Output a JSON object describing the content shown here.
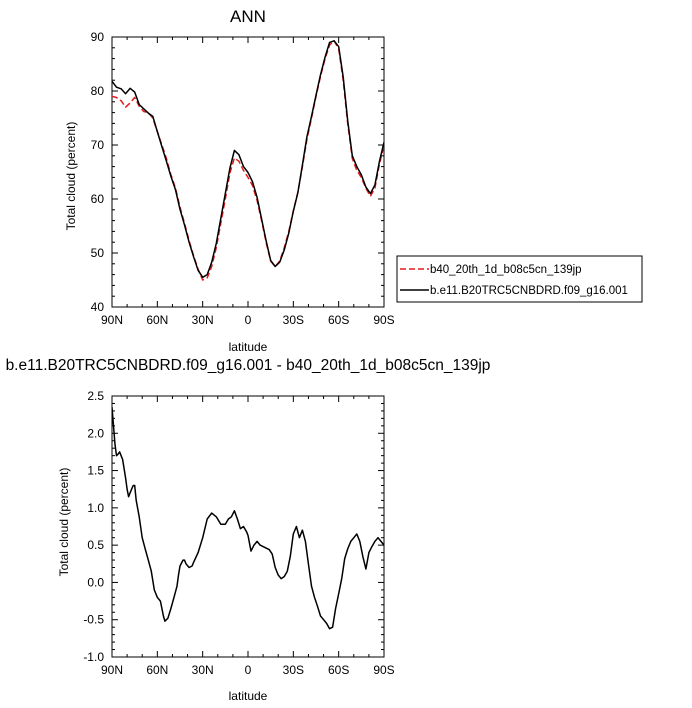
{
  "chart_data": [
    {
      "type": "line",
      "title": "ANN",
      "xlabel": "latitude",
      "ylabel": "Total cloud (percent)",
      "xlim": [
        90,
        -90
      ],
      "ylim": [
        40,
        90
      ],
      "xticks": [
        90,
        60,
        30,
        0,
        -30,
        -60,
        -90
      ],
      "xtick_labels": [
        "90N",
        "60N",
        "30N",
        "0",
        "30S",
        "60S",
        "90S"
      ],
      "yticks": [
        40,
        50,
        60,
        70,
        80,
        90
      ],
      "ytick_labels": [
        "40",
        "50",
        "60",
        "70",
        "80",
        "90"
      ],
      "grid": false,
      "legend_position": "right",
      "series": [
        {
          "name": "b40_20th_1d_b08c5cn_139jp",
          "color": "#e41a1c",
          "dash": "dashed",
          "x": [
            90,
            87,
            84,
            81,
            78,
            75,
            72,
            69,
            66,
            63,
            60,
            57,
            54,
            51,
            48,
            45,
            42,
            39,
            36,
            33,
            30,
            27,
            24,
            21,
            18,
            15,
            12,
            9,
            6,
            3,
            0,
            -3,
            -6,
            -9,
            -12,
            -15,
            -18,
            -21,
            -24,
            -27,
            -30,
            -33,
            -36,
            -39,
            -42,
            -45,
            -48,
            -51,
            -54,
            -57,
            -60,
            -63,
            -66,
            -69,
            -72,
            -75,
            -78,
            -81,
            -84,
            -87,
            -90
          ],
          "y": [
            79,
            78.8,
            78.2,
            77,
            77.8,
            78.8,
            77.2,
            76.2,
            76,
            75,
            72.5,
            70,
            67.5,
            64.5,
            62,
            58.5,
            55.5,
            52.3,
            49.5,
            47,
            45,
            45.4,
            47.5,
            51,
            55.5,
            60,
            64.8,
            67.6,
            67,
            65.3,
            64,
            62.5,
            59.7,
            56,
            52,
            48.5,
            47.5,
            48.5,
            51,
            54,
            57.8,
            61.3,
            66,
            71,
            75,
            79,
            82.7,
            86,
            88.5,
            89.3,
            87.8,
            82,
            74,
            67.5,
            65.3,
            64,
            62,
            60.5,
            62,
            66.5,
            70
          ]
        },
        {
          "name": "b.e11.B20TRC5CNBDRD.f09_g16.001",
          "color": "#000000",
          "dash": "solid",
          "x": [
            90,
            87,
            84,
            81,
            78,
            75,
            72,
            69,
            66,
            63,
            60,
            57,
            54,
            51,
            48,
            45,
            42,
            39,
            36,
            33,
            30,
            27,
            24,
            21,
            18,
            15,
            12,
            9,
            6,
            3,
            0,
            -3,
            -6,
            -9,
            -12,
            -15,
            -18,
            -21,
            -24,
            -27,
            -30,
            -33,
            -36,
            -39,
            -42,
            -45,
            -48,
            -51,
            -54,
            -57,
            -60,
            -63,
            -66,
            -69,
            -72,
            -75,
            -78,
            -81,
            -84,
            -87,
            -90
          ],
          "y": [
            81.8,
            80.7,
            80.4,
            79.5,
            80.5,
            79.8,
            77.5,
            76.7,
            75.9,
            75.3,
            72.5,
            69.7,
            67,
            64.2,
            61.7,
            58.1,
            55.2,
            52,
            49.3,
            46.8,
            45.5,
            46,
            48.3,
            51.8,
            56.4,
            61,
            65.7,
            69,
            68.2,
            66,
            64.9,
            63.2,
            60.3,
            56.3,
            52.3,
            48.6,
            47.5,
            48.3,
            50.6,
            53.7,
            57.7,
            61.2,
            66.3,
            71.5,
            75.3,
            79.2,
            83,
            86.3,
            89,
            89.3,
            88.2,
            82.6,
            74.5,
            68,
            66,
            64.5,
            62.2,
            61,
            62.6,
            67,
            70.5
          ]
        }
      ]
    },
    {
      "type": "line",
      "title": "b.e11.B20TRC5CNBDRD.f09_g16.001 - b40_20th_1d_b08c5cn_139jp",
      "xlabel": "latitude",
      "ylabel": "Total cloud (percent)",
      "xlim": [
        90,
        -90
      ],
      "ylim": [
        -1.0,
        2.5
      ],
      "xticks": [
        90,
        60,
        30,
        0,
        -30,
        -60,
        -90
      ],
      "xtick_labels": [
        "90N",
        "60N",
        "30N",
        "0",
        "30S",
        "60S",
        "90S"
      ],
      "yticks": [
        -1.0,
        -0.5,
        0.0,
        0.5,
        1.0,
        1.5,
        2.0,
        2.5
      ],
      "ytick_labels": [
        "-1.0",
        "-0.5",
        "0.0",
        "0.5",
        "1.0",
        "1.5",
        "2.0",
        "2.5"
      ],
      "grid": false,
      "series": [
        {
          "color": "#000000",
          "dash": "solid",
          "x": [
            90,
            89,
            88,
            87,
            86,
            85,
            84,
            83,
            81,
            80,
            79,
            78,
            77,
            76,
            75,
            74,
            72,
            70,
            68,
            66,
            64,
            62,
            60,
            58,
            57,
            56,
            55,
            53,
            51,
            49,
            47,
            46,
            45,
            43,
            42,
            41,
            39,
            37,
            36,
            33,
            30,
            27,
            24,
            21,
            18,
            15,
            13,
            11,
            9,
            7,
            5,
            3,
            1,
            0,
            -2,
            -4,
            -6,
            -8,
            -10,
            -12,
            -14,
            -16,
            -18,
            -20,
            -22,
            -24,
            -26,
            -28,
            -30,
            -32,
            -34,
            -36,
            -38,
            -40,
            -42,
            -44,
            -46,
            -48,
            -50,
            -52,
            -54,
            -56,
            -58,
            -60,
            -62,
            -64,
            -66,
            -68,
            -70,
            -72,
            -74,
            -76,
            -78,
            -80,
            -82,
            -84,
            -86,
            -88,
            -90
          ],
          "y": [
            2.35,
            2.1,
            1.85,
            1.7,
            1.72,
            1.75,
            1.7,
            1.65,
            1.4,
            1.25,
            1.15,
            1.2,
            1.25,
            1.3,
            1.3,
            1.1,
            0.88,
            0.6,
            0.45,
            0.3,
            0.15,
            -0.1,
            -0.2,
            -0.25,
            -0.35,
            -0.45,
            -0.52,
            -0.48,
            -0.35,
            -0.2,
            -0.05,
            0.1,
            0.22,
            0.3,
            0.3,
            0.25,
            0.2,
            0.22,
            0.27,
            0.4,
            0.6,
            0.85,
            0.93,
            0.88,
            0.78,
            0.78,
            0.85,
            0.88,
            0.96,
            0.85,
            0.72,
            0.75,
            0.68,
            0.63,
            0.42,
            0.5,
            0.55,
            0.5,
            0.48,
            0.46,
            0.44,
            0.38,
            0.2,
            0.1,
            0.05,
            0.08,
            0.15,
            0.35,
            0.65,
            0.75,
            0.6,
            0.7,
            0.55,
            0.25,
            -0.05,
            -0.2,
            -0.32,
            -0.45,
            -0.5,
            -0.55,
            -0.62,
            -0.6,
            -0.35,
            -0.15,
            0.05,
            0.32,
            0.45,
            0.55,
            0.6,
            0.65,
            0.55,
            0.35,
            0.18,
            0.4,
            0.48,
            0.55,
            0.6,
            0.55,
            0.5
          ]
        }
      ]
    }
  ]
}
